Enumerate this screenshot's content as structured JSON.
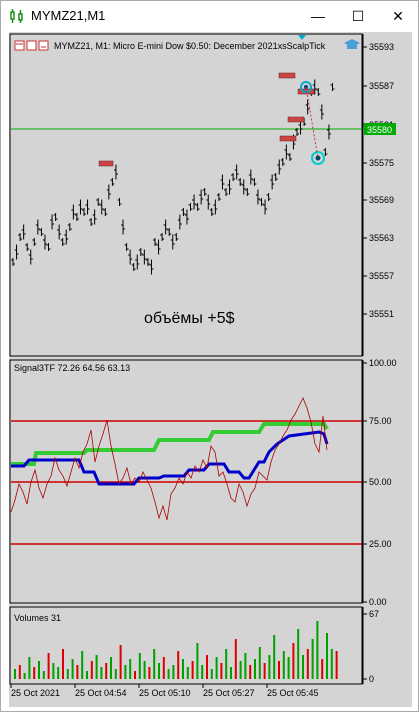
{
  "window": {
    "title": "MYMZ21,M1",
    "minimize_glyph": "—",
    "maximize_glyph": "☐",
    "close_glyph": "✕"
  },
  "main_chart": {
    "header": "MYMZ21, M1:  Micro E-mini Dow $0.50: December 2021xsScalpTick",
    "annotation": "объёмы +5$",
    "current_price_label": "35580",
    "price_ticks": [
      "35593",
      "35587",
      "35581",
      "35575",
      "35569",
      "35563",
      "35557",
      "35551"
    ]
  },
  "indicator": {
    "header": "Signal3TF 72.26 64.56 63.13",
    "ticks": [
      "100.00",
      "75.00",
      "50.00",
      "25.00",
      "0.00"
    ]
  },
  "volumes": {
    "header": "Volumes 31",
    "ticks": [
      "67",
      "0"
    ]
  },
  "time_axis": {
    "labels": [
      "25 Oct 2021",
      "25 Oct 04:54",
      "25 Oct 05:10",
      "25 Oct 05:27",
      "25 Oct 05:45"
    ]
  },
  "colors": {
    "chart_bg": "#d4d4d4",
    "price_line": "#00aa00",
    "level_line": "#cc0000",
    "green_line": "#33cc33",
    "blue_line": "#0000cc",
    "thin_red": "#aa0000",
    "vol_green": "#00a000",
    "vol_red": "#dd0000"
  }
}
